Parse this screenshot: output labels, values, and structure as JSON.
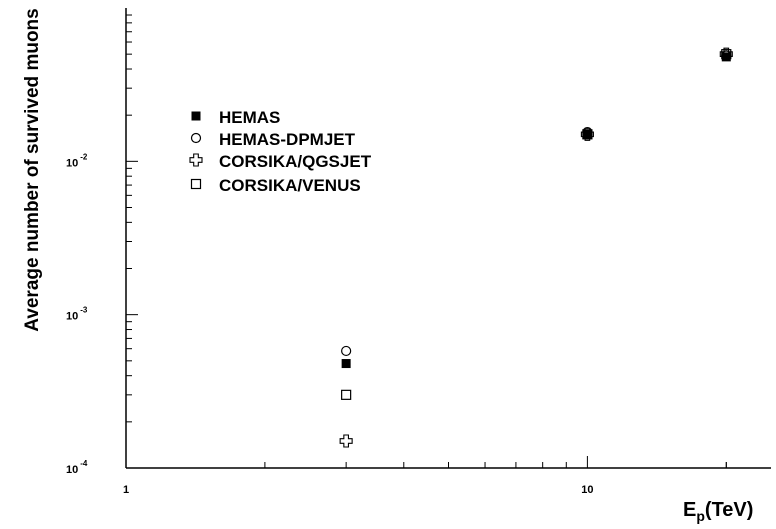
{
  "chart_data": {
    "type": "scatter",
    "xlabel": "E_p(TeV)",
    "xlabel_main": "E",
    "xlabel_sub": "p",
    "xlabel_tail": "(TeV)",
    "ylabel": "Average number of survived muons",
    "xscale": "log",
    "yscale": "log",
    "xlim": [
      1,
      25
    ],
    "ylim": [
      0.0001,
      0.1
    ],
    "x_tick_labels": [
      {
        "value": 1,
        "label": "1"
      },
      {
        "value": 10,
        "label": "10"
      }
    ],
    "y_tick_labels": [
      {
        "value": 0.0001,
        "base": "10",
        "exp": "-4"
      },
      {
        "value": 0.001,
        "base": "10",
        "exp": "-3"
      },
      {
        "value": 0.01,
        "base": "10",
        "exp": "-2"
      }
    ],
    "grid": false,
    "legend_position": "upper-left",
    "series": [
      {
        "name": "HEMAS",
        "marker": "filled-square",
        "x": [
          3,
          10,
          20
        ],
        "y": [
          0.00048,
          0.015,
          0.048
        ]
      },
      {
        "name": "HEMAS-DPMJET",
        "marker": "open-circle",
        "x": [
          3,
          10,
          20
        ],
        "y": [
          0.00058,
          0.0155,
          0.049
        ]
      },
      {
        "name": "CORSIKA/QGSJET",
        "marker": "open-cross",
        "x": [
          3,
          10,
          20
        ],
        "y": [
          0.00015,
          0.015,
          0.05
        ]
      },
      {
        "name": "CORSIKA/VENUS",
        "marker": "open-square",
        "x": [
          3,
          10,
          20
        ],
        "y": [
          0.0003,
          0.015,
          0.05
        ]
      }
    ]
  }
}
